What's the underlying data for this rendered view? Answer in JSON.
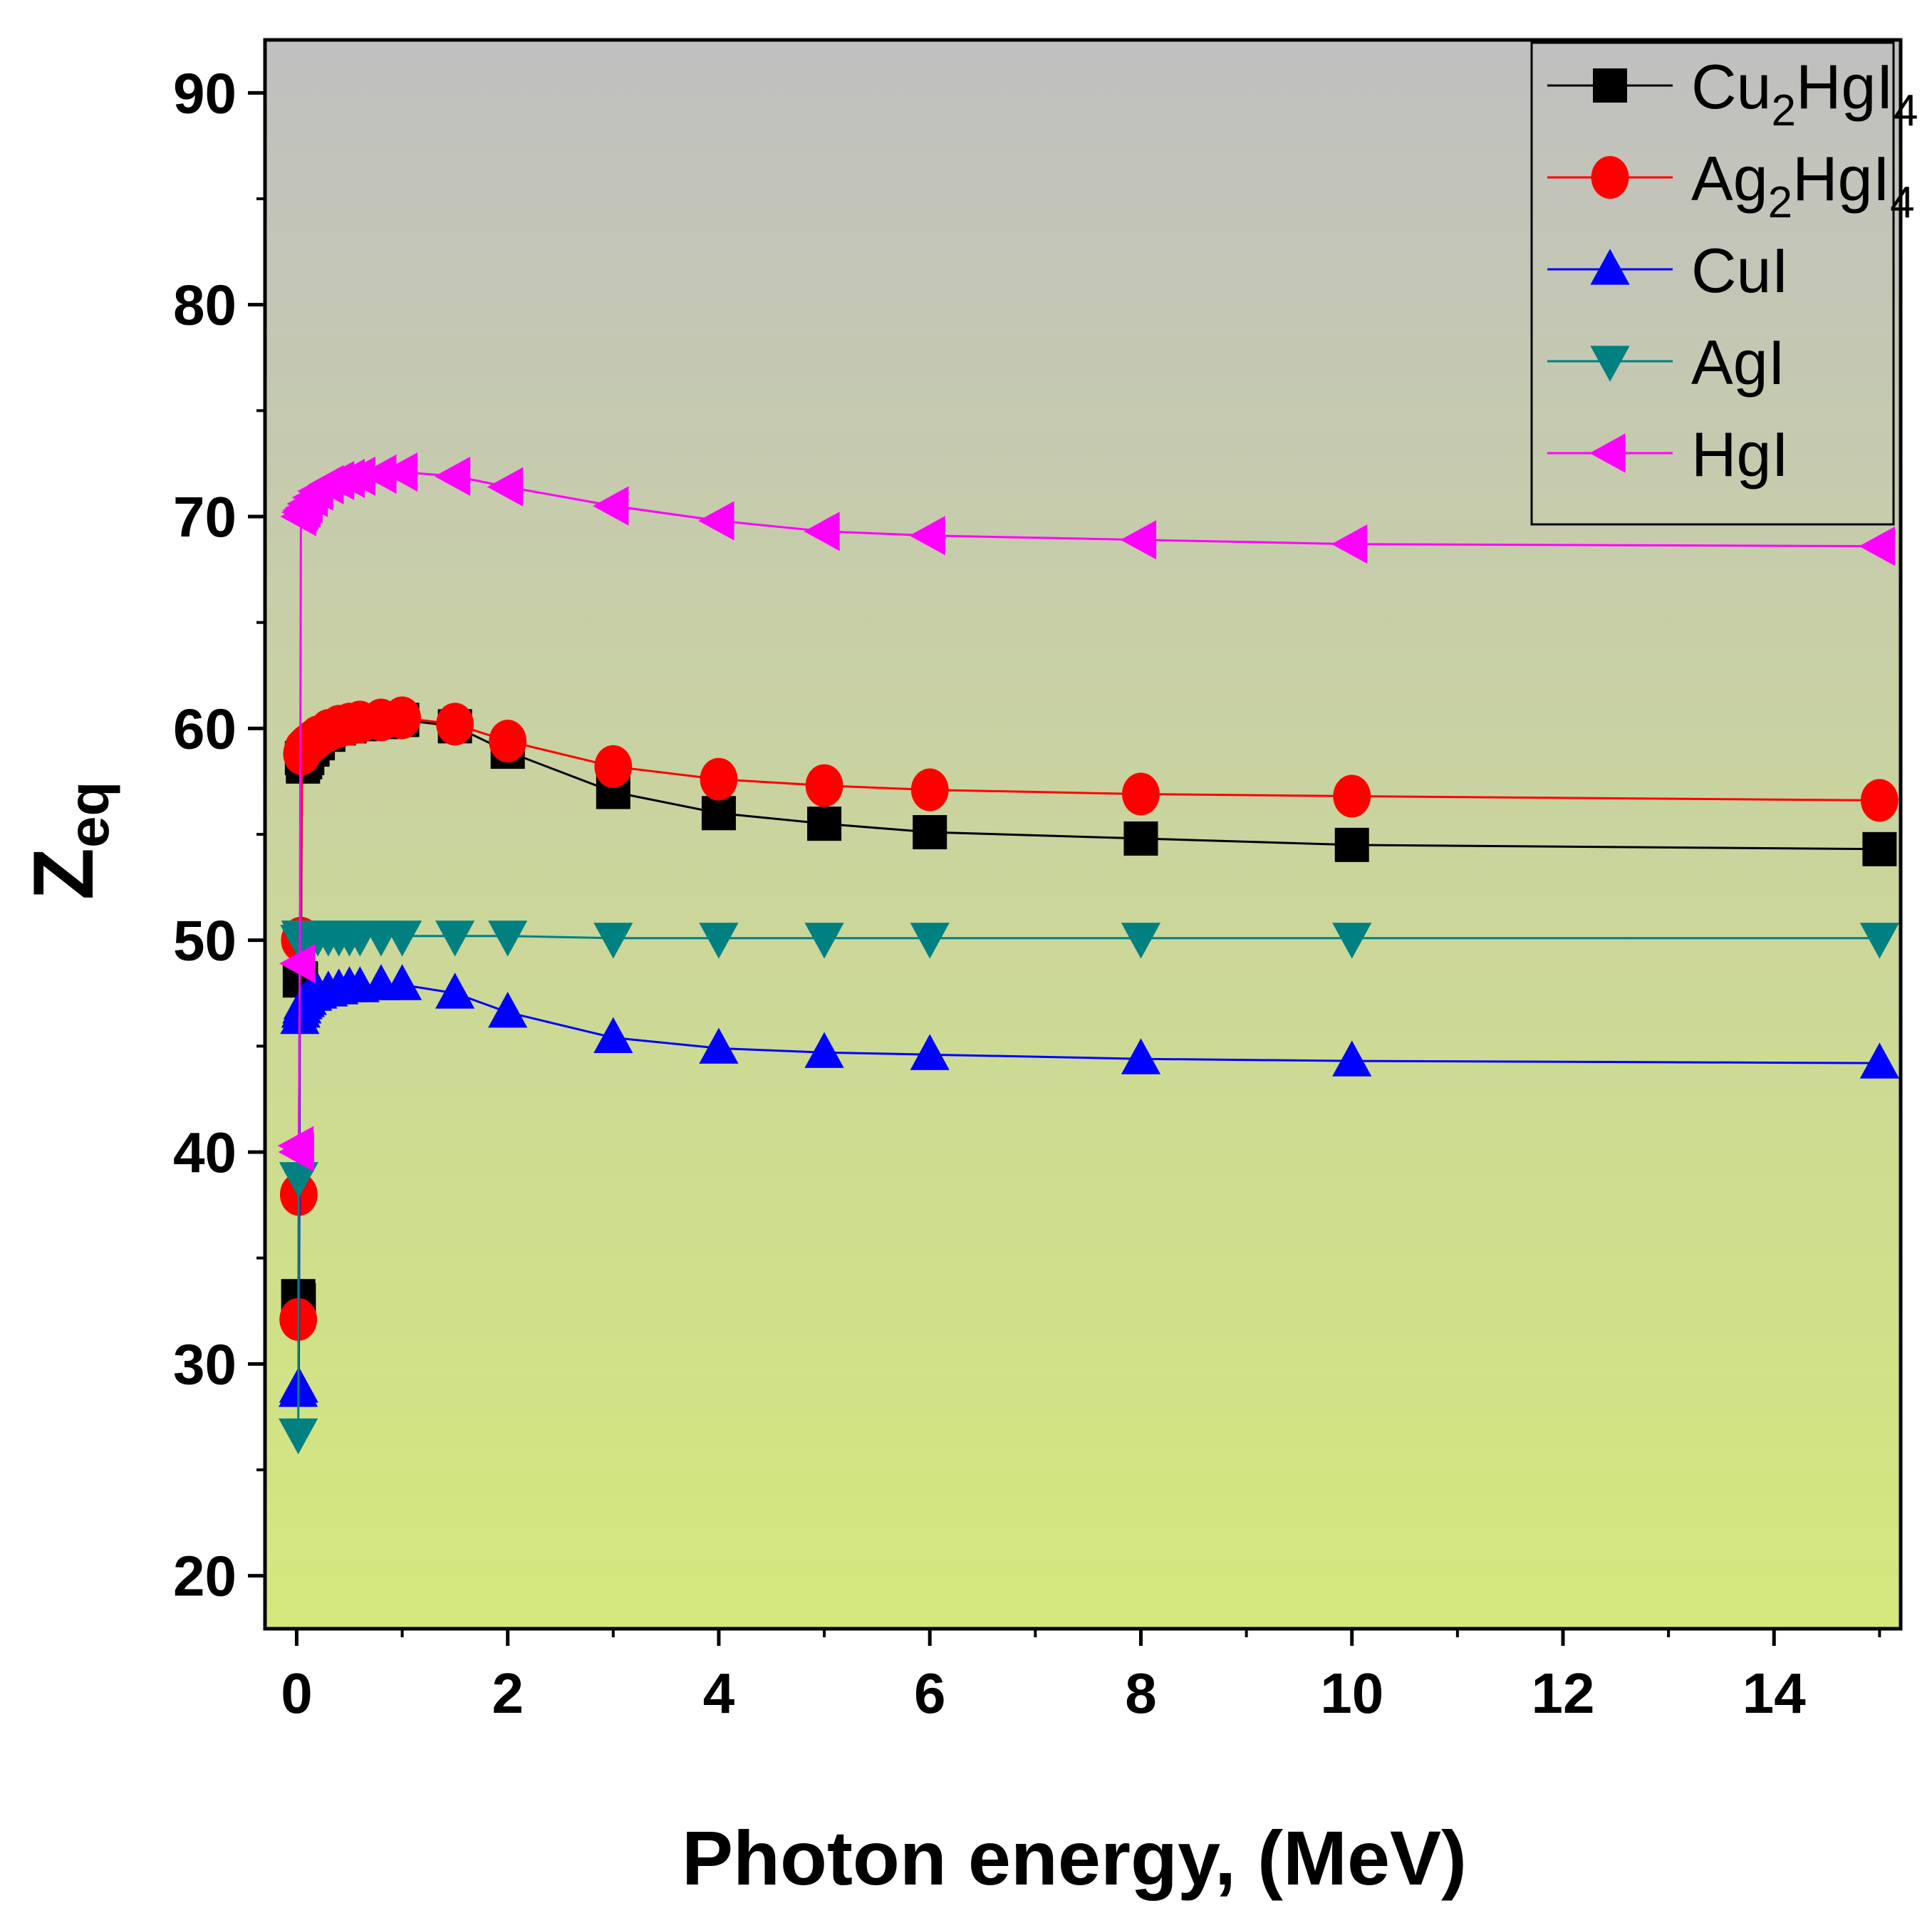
{
  "chart_data": {
    "type": "line",
    "title": "",
    "xlabel": "Photon energy, (MeV)",
    "ylabel": {
      "main": "Z",
      "sub": "eq"
    },
    "xlim": [
      -0.3,
      15.2
    ],
    "ylim": [
      17.5,
      92.5
    ],
    "xticks": [
      0,
      2,
      4,
      6,
      8,
      10,
      12,
      14
    ],
    "yticks": [
      20,
      30,
      40,
      50,
      60,
      70,
      80,
      90
    ],
    "legend_position": "top-right",
    "x": [
      0.015,
      0.02,
      0.03,
      0.04,
      0.05,
      0.06,
      0.08,
      0.1,
      0.15,
      0.2,
      0.3,
      0.4,
      0.5,
      0.6,
      0.8,
      1.0,
      1.5,
      2.0,
      3.0,
      4.0,
      5.0,
      6.0,
      8.0,
      10.0,
      15.0
    ],
    "series": [
      {
        "name": "Cu2HgI4",
        "legend": {
          "base": "Cu",
          "sub1": "2",
          "mid": "HgI",
          "sub2": "4"
        },
        "color": "#000000",
        "marker": "square",
        "values": [
          33.2,
          33.0,
          48.1,
          48.2,
          58.6,
          58.2,
          58.4,
          58.6,
          59.0,
          59.3,
          59.7,
          60.0,
          60.1,
          60.2,
          60.3,
          60.4,
          60.1,
          58.9,
          57.0,
          56.0,
          55.5,
          55.1,
          54.8,
          54.5,
          54.3
        ]
      },
      {
        "name": "Ag2HgI4",
        "legend": {
          "base": "Ag",
          "sub1": "2",
          "mid": "HgI",
          "sub2": "4"
        },
        "color": "#ff0000",
        "marker": "circle",
        "values": [
          32.1,
          38.0,
          50.0,
          50.1,
          58.8,
          59.0,
          59.1,
          59.2,
          59.4,
          59.6,
          59.9,
          60.1,
          60.2,
          60.3,
          60.4,
          60.5,
          60.2,
          59.4,
          58.2,
          57.6,
          57.3,
          57.1,
          56.9,
          56.8,
          56.6
        ]
      },
      {
        "name": "CuI",
        "legend": {
          "base": "CuI",
          "sub1": "",
          "mid": "",
          "sub2": ""
        },
        "color": "#0000ff",
        "marker": "triangle-up",
        "values": [
          28.7,
          28.9,
          46.3,
          46.6,
          46.8,
          47.0,
          47.1,
          47.2,
          47.4,
          47.5,
          47.6,
          47.7,
          47.8,
          47.8,
          47.9,
          47.9,
          47.5,
          46.6,
          45.4,
          44.9,
          44.7,
          44.6,
          44.4,
          44.3,
          44.2
        ]
      },
      {
        "name": "AgI",
        "legend": {
          "base": "AgI",
          "sub1": "",
          "mid": "",
          "sub2": ""
        },
        "color": "#008080",
        "marker": "triangle-down",
        "values": [
          26.7,
          38.8,
          50.0,
          50.2,
          50.2,
          50.2,
          50.2,
          50.2,
          50.2,
          50.2,
          50.2,
          50.2,
          50.2,
          50.2,
          50.2,
          50.2,
          50.2,
          50.2,
          50.1,
          50.1,
          50.1,
          50.1,
          50.1,
          50.1,
          50.1
        ]
      },
      {
        "name": "HgI",
        "legend": {
          "base": "HgI",
          "sub1": "",
          "mid": "",
          "sub2": ""
        },
        "color": "#ff00ff",
        "marker": "triangle-left",
        "values": [
          40.3,
          40.0,
          48.9,
          70.0,
          70.2,
          70.3,
          70.4,
          70.6,
          70.9,
          71.2,
          71.5,
          71.7,
          71.8,
          71.9,
          72.0,
          72.1,
          71.9,
          71.4,
          70.5,
          69.8,
          69.3,
          69.1,
          68.9,
          68.7,
          68.6
        ]
      }
    ]
  }
}
